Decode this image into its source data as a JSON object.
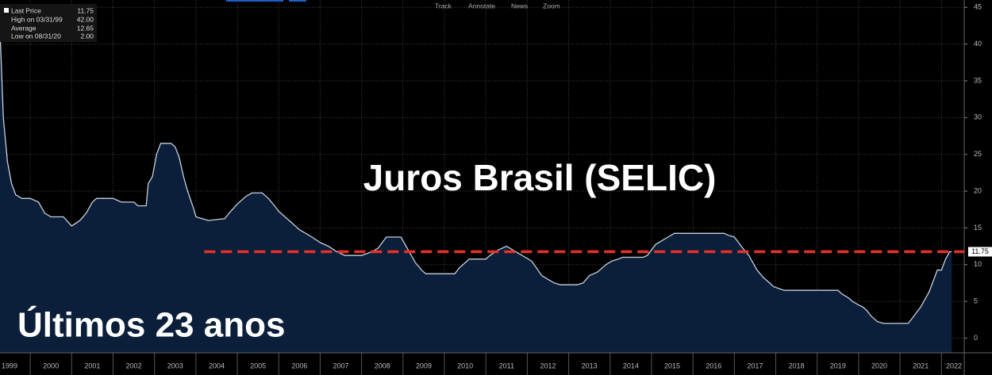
{
  "chart_data": {
    "type": "area",
    "title": "Juros Brasil (SELIC)",
    "subtitle": "Últimos 23 anos",
    "toolbar": [
      "Track",
      "Annotate",
      "News",
      "Zoom"
    ],
    "legend": [
      {
        "label": "Last Price",
        "value": "11.75"
      },
      {
        "label": "High on 03/31/99",
        "value": "42.00"
      },
      {
        "label": "Average",
        "value": "12.65"
      },
      {
        "label": "Low on 08/31/20",
        "value": "2.00"
      }
    ],
    "last_value": 11.75,
    "reference_line": {
      "value": 11.75,
      "from": 2004.2,
      "color": "#e8312a"
    },
    "xlim": [
      1999.27,
      2022.55
    ],
    "ylim": [
      -2,
      46
    ],
    "yticks": [
      0,
      5,
      10,
      15,
      20,
      25,
      30,
      35,
      40,
      45
    ],
    "xticks": [
      1999,
      2000,
      2001,
      2002,
      2003,
      2004,
      2005,
      2006,
      2007,
      2008,
      2009,
      2010,
      2011,
      2012,
      2013,
      2014,
      2015,
      2016,
      2017,
      2018,
      2019,
      2020,
      2021,
      2022
    ],
    "grid": true,
    "x": [
      1999.27,
      1999.35,
      1999.45,
      1999.55,
      1999.65,
      1999.8,
      2000.0,
      2000.2,
      2000.35,
      2000.5,
      2000.8,
      2001.0,
      2001.2,
      2001.35,
      2001.5,
      2001.6,
      2002.0,
      2002.2,
      2002.5,
      2002.6,
      2002.8,
      2002.85,
      2002.95,
      2003.05,
      2003.15,
      2003.4,
      2003.5,
      2003.6,
      2003.7,
      2003.8,
      2003.95,
      2004.0,
      2004.3,
      2004.7,
      2004.8,
      2005.0,
      2005.2,
      2005.35,
      2005.6,
      2005.75,
      2005.9,
      2006.0,
      2006.15,
      2006.3,
      2006.5,
      2006.65,
      2006.8,
      2007.0,
      2007.2,
      2007.4,
      2007.6,
      2008.0,
      2008.25,
      2008.4,
      2008.5,
      2008.6,
      2008.95,
      2009.05,
      2009.2,
      2009.3,
      2009.45,
      2009.55,
      2010.25,
      2010.35,
      2010.5,
      2010.6,
      2011.0,
      2011.1,
      2011.3,
      2011.5,
      2011.65,
      2011.8,
      2011.95,
      2012.1,
      2012.2,
      2012.35,
      2012.5,
      2012.65,
      2012.8,
      2013.2,
      2013.35,
      2013.5,
      2013.7,
      2013.8,
      2013.9,
      2014.05,
      2014.2,
      2014.3,
      2014.8,
      2014.9,
      2015.0,
      2015.1,
      2015.25,
      2015.4,
      2015.55,
      2016.75,
      2016.85,
      2017.0,
      2017.1,
      2017.2,
      2017.35,
      2017.45,
      2017.55,
      2017.7,
      2017.85,
      2017.95,
      2018.2,
      2019.5,
      2019.6,
      2019.75,
      2019.85,
      2020.0,
      2020.1,
      2020.2,
      2020.3,
      2020.45,
      2020.6,
      2021.2,
      2021.3,
      2021.4,
      2021.5,
      2021.6,
      2021.7,
      2021.8,
      2021.9,
      2022.0,
      2022.1,
      2022.2,
      2022.25
    ],
    "series": [
      {
        "name": "Last Price",
        "color": "#c8d0dc",
        "fill": "#0b1f3a",
        "values": [
          42,
          30,
          24,
          21,
          19.5,
          19,
          19,
          18.5,
          17,
          16.5,
          16.5,
          15.25,
          16,
          17,
          18.5,
          19,
          19,
          18.5,
          18.5,
          18,
          18,
          21,
          22,
          25,
          26.5,
          26.5,
          26,
          24.5,
          22,
          20,
          17.5,
          16.5,
          16,
          16.25,
          17,
          18.25,
          19.25,
          19.75,
          19.75,
          19,
          18,
          17.25,
          16.5,
          15.75,
          14.75,
          14.25,
          13.75,
          13,
          12.5,
          11.75,
          11.25,
          11.25,
          11.75,
          12.25,
          13,
          13.75,
          13.75,
          12.75,
          11.25,
          10.25,
          9.25,
          8.75,
          8.75,
          9.5,
          10.25,
          10.75,
          10.75,
          11.25,
          12,
          12.5,
          12,
          11.5,
          11,
          10.5,
          9.75,
          8.5,
          8,
          7.5,
          7.25,
          7.25,
          7.5,
          8.5,
          9,
          9.5,
          10,
          10.5,
          10.75,
          11,
          11,
          11.25,
          12,
          12.75,
          13.25,
          13.75,
          14.25,
          14.25,
          14,
          13.75,
          13,
          12.25,
          11.25,
          10.25,
          9.25,
          8.25,
          7.5,
          7,
          6.5,
          6.5,
          6,
          5.5,
          5,
          4.5,
          4.25,
          3.75,
          3,
          2.25,
          2,
          2,
          2.75,
          3.5,
          4.25,
          5.25,
          6.25,
          7.75,
          9.25,
          9.25,
          10.75,
          11.75,
          11.75
        ]
      }
    ]
  }
}
